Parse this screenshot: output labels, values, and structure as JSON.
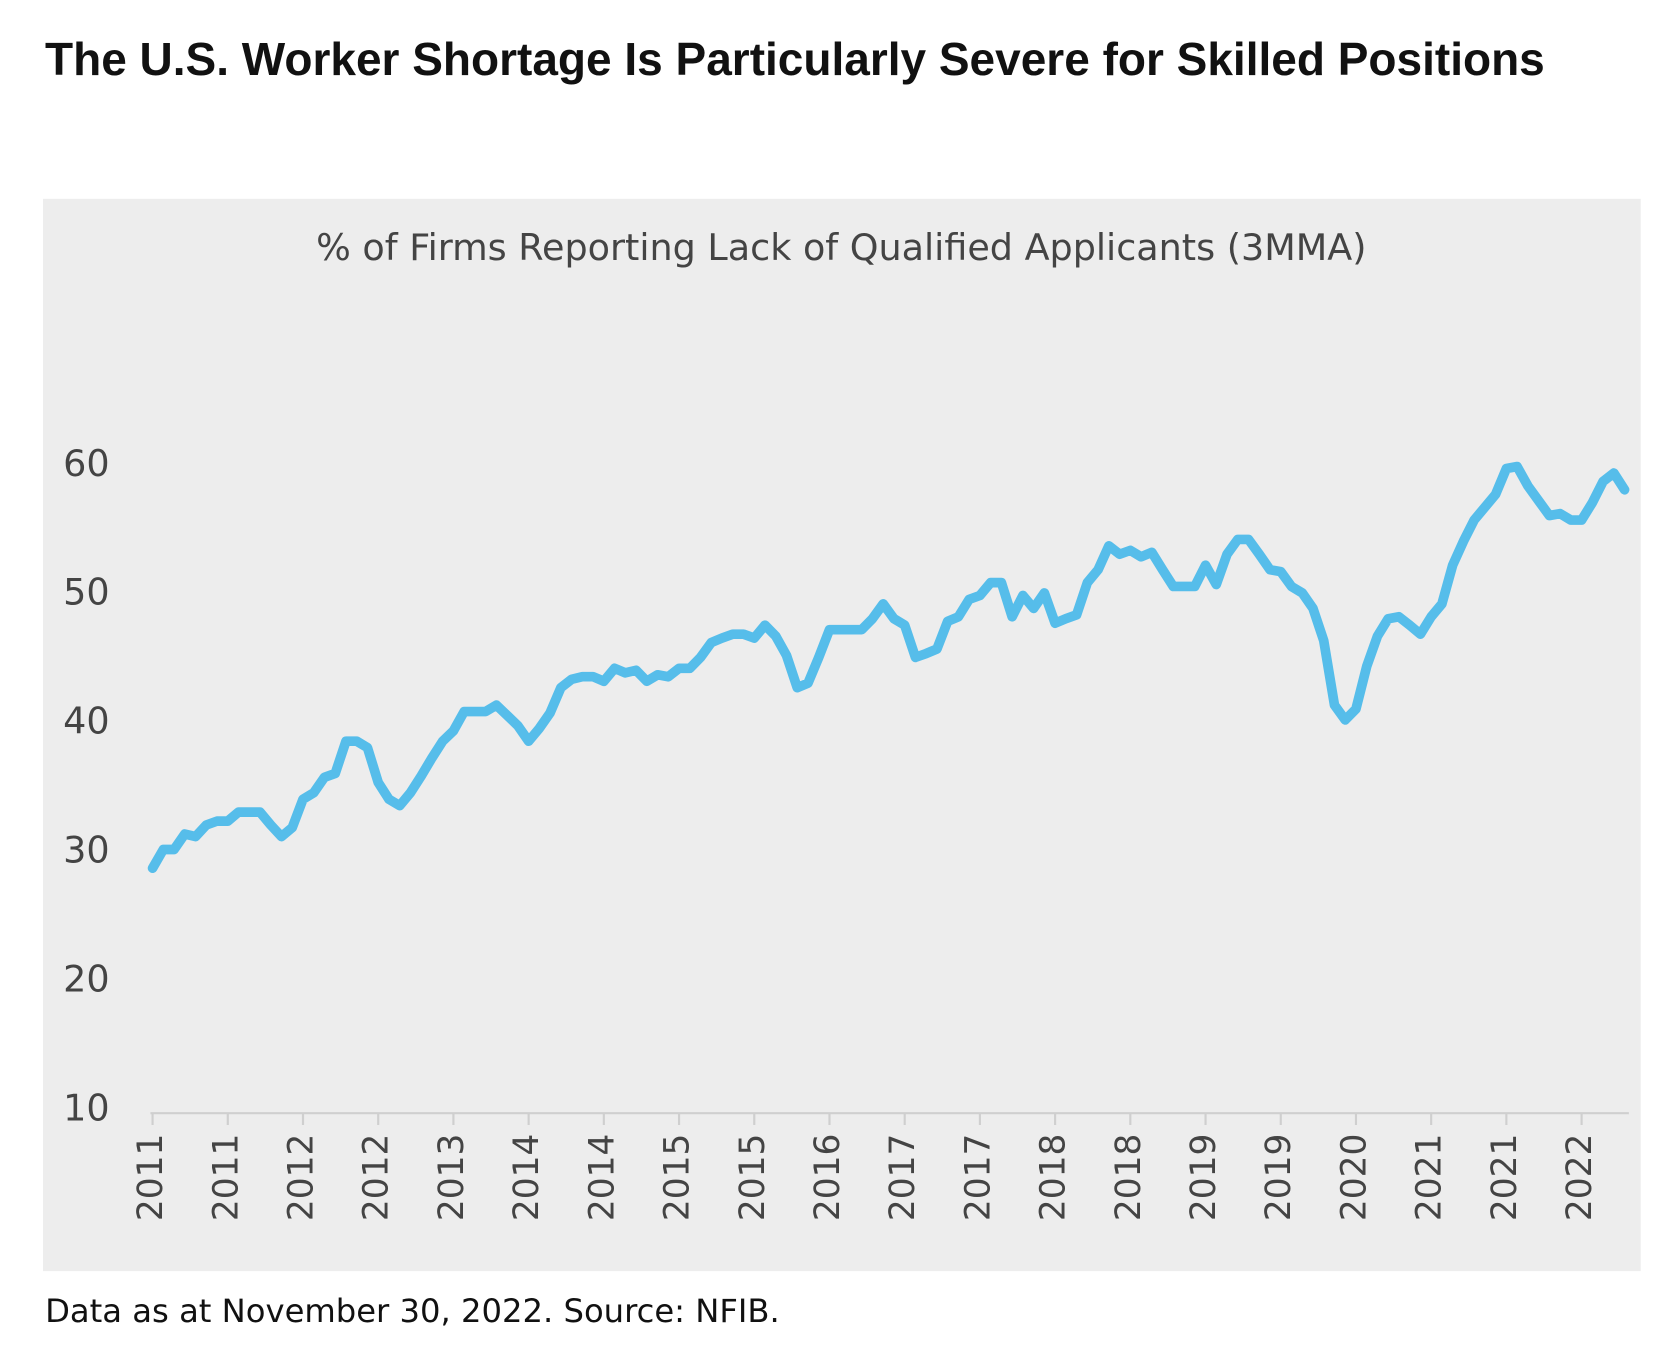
{
  "chart_data": {
    "type": "line",
    "title": "The U.S. Worker Shortage Is Particularly Severe for Skilled Positions",
    "subtitle": "% of Firms Reporting Lack of Qualified Applicants (3MMA)",
    "footnote": "Data as at November 30, 2022. Source: NFIB.",
    "categories": [
      "2011",
      null,
      null,
      null,
      null,
      null,
      null,
      "2011",
      null,
      null,
      null,
      null,
      null,
      null,
      "2012",
      null,
      null,
      null,
      null,
      null,
      null,
      "2012",
      null,
      null,
      null,
      null,
      null,
      null,
      "2013",
      null,
      null,
      null,
      null,
      null,
      null,
      "2014",
      null,
      null,
      null,
      null,
      null,
      null,
      "2014",
      null,
      null,
      null,
      null,
      null,
      null,
      "2015",
      null,
      null,
      null,
      null,
      null,
      null,
      "2015",
      null,
      null,
      null,
      null,
      null,
      null,
      "2016",
      null,
      null,
      null,
      null,
      null,
      null,
      "2017",
      null,
      null,
      null,
      null,
      null,
      null,
      "2017",
      null,
      null,
      null,
      null,
      null,
      null,
      "2018",
      null,
      null,
      null,
      null,
      null,
      null,
      "2018",
      null,
      null,
      null,
      null,
      null,
      null,
      "2019",
      null,
      null,
      null,
      null,
      null,
      null,
      "2019",
      null,
      null,
      null,
      null,
      null,
      null,
      "2020",
      null,
      null,
      null,
      null,
      null,
      null,
      "2021",
      null,
      null,
      null,
      null,
      null,
      null,
      "2021",
      null,
      null,
      null,
      null,
      null,
      null,
      "2022",
      null,
      null,
      null,
      null
    ],
    "series": [
      {
        "color": "#56bdea",
        "values": [
          28.75,
          30.2,
          30.2,
          31.4,
          31.2,
          32.1,
          32.4,
          32.4,
          33.1,
          33.1,
          33.1,
          32.1,
          31.2,
          31.9,
          34.1,
          34.6,
          35.8,
          36.1,
          38.6,
          38.6,
          38.1,
          35.4,
          34.1,
          33.6,
          34.6,
          35.9,
          37.3,
          38.6,
          39.4,
          40.9,
          40.9,
          40.9,
          41.4,
          40.6,
          39.8,
          38.6,
          39.6,
          40.8,
          42.75,
          43.4,
          43.6,
          43.6,
          43.25,
          44.25,
          43.9,
          44.1,
          43.25,
          43.75,
          43.6,
          44.25,
          44.25,
          45.1,
          46.25,
          46.6,
          46.9,
          46.9,
          46.6,
          47.6,
          46.75,
          45.25,
          42.75,
          43.1,
          45.1,
          47.25,
          47.25,
          47.25,
          47.25,
          48.1,
          49.25,
          48.1,
          47.6,
          45.1,
          45.4,
          45.75,
          47.9,
          48.25,
          49.6,
          49.9,
          50.9,
          50.9,
          48.25,
          49.9,
          48.9,
          50.1,
          47.75,
          48.1,
          48.4,
          50.9,
          51.9,
          53.75,
          53.1,
          53.4,
          52.9,
          53.25,
          51.9,
          50.6,
          50.6,
          50.6,
          52.25,
          50.75,
          53.1,
          54.25,
          54.25,
          53.1,
          51.9,
          51.75,
          50.6,
          50.1,
          48.9,
          46.4,
          41.4,
          40.25,
          41.1,
          44.4,
          46.75,
          48.1,
          48.25,
          47.6,
          46.9,
          48.25,
          49.25,
          52.25,
          54.1,
          55.75,
          56.75,
          57.75,
          59.75,
          59.9,
          58.4,
          57.25,
          56.1,
          56.25,
          55.75,
          55.75,
          57.1,
          58.75,
          59.4,
          58.1
        ]
      }
    ],
    "ylim": [
      10,
      60
    ],
    "yticks": [
      10,
      20,
      30,
      40,
      50,
      60
    ],
    "grid": false
  }
}
